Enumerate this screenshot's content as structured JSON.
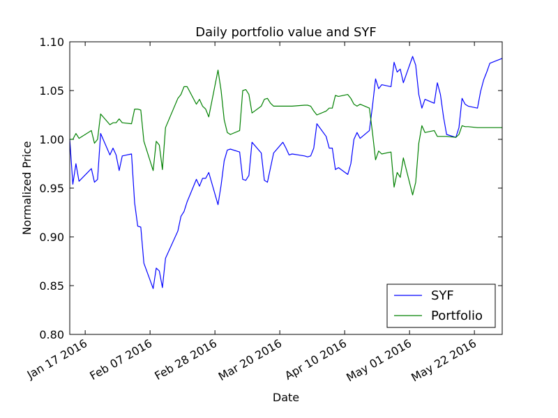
{
  "chart_data": {
    "type": "line",
    "title": "Daily portfolio value and SYF",
    "xlabel": "Date",
    "ylabel": "Normalized Price",
    "x": [
      "2016-01-12",
      "2016-01-13",
      "2016-01-14",
      "2016-01-15",
      "2016-01-19",
      "2016-01-20",
      "2016-01-21",
      "2016-01-22",
      "2016-01-25",
      "2016-01-26",
      "2016-01-27",
      "2016-01-28",
      "2016-01-29",
      "2016-02-01",
      "2016-02-02",
      "2016-02-03",
      "2016-02-04",
      "2016-02-05",
      "2016-02-08",
      "2016-02-09",
      "2016-02-10",
      "2016-02-11",
      "2016-02-12",
      "2016-02-16",
      "2016-02-17",
      "2016-02-18",
      "2016-02-19",
      "2016-02-22",
      "2016-02-23",
      "2016-02-24",
      "2016-02-25",
      "2016-02-26",
      "2016-02-29",
      "2016-03-01",
      "2016-03-02",
      "2016-03-03",
      "2016-03-04",
      "2016-03-07",
      "2016-03-08",
      "2016-03-09",
      "2016-03-10",
      "2016-03-11",
      "2016-03-14",
      "2016-03-15",
      "2016-03-16",
      "2016-03-17",
      "2016-03-18",
      "2016-03-21",
      "2016-03-22",
      "2016-03-23",
      "2016-03-24",
      "2016-03-28",
      "2016-03-29",
      "2016-03-30",
      "2016-03-31",
      "2016-04-01",
      "2016-04-04",
      "2016-04-05",
      "2016-04-06",
      "2016-04-07",
      "2016-04-08",
      "2016-04-11",
      "2016-04-12",
      "2016-04-13",
      "2016-04-14",
      "2016-04-15",
      "2016-04-18",
      "2016-04-19",
      "2016-04-20",
      "2016-04-21",
      "2016-04-22",
      "2016-04-25",
      "2016-04-26",
      "2016-04-27",
      "2016-04-28",
      "2016-04-29",
      "2016-05-02",
      "2016-05-03",
      "2016-05-04",
      "2016-05-05",
      "2016-05-06",
      "2016-05-09",
      "2016-05-10",
      "2016-05-11",
      "2016-05-12",
      "2016-05-13",
      "2016-05-16",
      "2016-05-17",
      "2016-05-18",
      "2016-05-19",
      "2016-05-20",
      "2016-05-23",
      "2016-05-24",
      "2016-05-25",
      "2016-05-26",
      "2016-05-27",
      "2016-05-31"
    ],
    "series": [
      {
        "name": "SYF",
        "color": "#0000ff",
        "values": [
          1.0,
          0.954,
          0.975,
          0.957,
          0.97,
          0.956,
          0.959,
          1.006,
          0.984,
          0.991,
          0.984,
          0.968,
          0.983,
          0.985,
          0.935,
          0.911,
          0.91,
          0.873,
          0.847,
          0.868,
          0.865,
          0.848,
          0.878,
          0.906,
          0.921,
          0.926,
          0.936,
          0.959,
          0.952,
          0.96,
          0.96,
          0.966,
          0.933,
          0.953,
          0.978,
          0.989,
          0.99,
          0.987,
          0.959,
          0.958,
          0.963,
          0.997,
          0.986,
          0.958,
          0.956,
          0.971,
          0.986,
          0.997,
          0.991,
          0.984,
          0.985,
          0.983,
          0.982,
          0.983,
          0.991,
          1.016,
          1.003,
          0.991,
          0.991,
          0.969,
          0.971,
          0.964,
          0.975,
          1.0,
          1.007,
          1.001,
          1.009,
          1.034,
          1.062,
          1.052,
          1.056,
          1.054,
          1.079,
          1.069,
          1.072,
          1.058,
          1.085,
          1.076,
          1.046,
          1.032,
          1.041,
          1.037,
          1.058,
          1.046,
          1.023,
          1.005,
          1.002,
          1.012,
          1.042,
          1.036,
          1.034,
          1.032,
          1.049,
          1.061,
          1.069,
          1.078,
          1.083
        ]
      },
      {
        "name": "Portfolio",
        "color": "#008000",
        "values": [
          1.0,
          1.0,
          1.006,
          1.001,
          1.009,
          0.996,
          1.0,
          1.026,
          1.015,
          1.017,
          1.017,
          1.021,
          1.017,
          1.016,
          1.031,
          1.031,
          1.03,
          0.998,
          0.968,
          0.998,
          0.994,
          0.969,
          1.012,
          1.042,
          1.046,
          1.054,
          1.054,
          1.036,
          1.041,
          1.034,
          1.031,
          1.023,
          1.071,
          1.05,
          1.02,
          1.007,
          1.005,
          1.009,
          1.05,
          1.051,
          1.046,
          1.027,
          1.034,
          1.041,
          1.042,
          1.037,
          1.034,
          1.034,
          1.034,
          1.034,
          1.034,
          1.035,
          1.035,
          1.034,
          1.029,
          1.025,
          1.029,
          1.032,
          1.032,
          1.045,
          1.044,
          1.046,
          1.042,
          1.036,
          1.034,
          1.036,
          1.032,
          1.007,
          0.979,
          0.988,
          0.985,
          0.987,
          0.951,
          0.966,
          0.961,
          0.981,
          0.943,
          0.956,
          0.996,
          1.014,
          1.007,
          1.009,
          1.003,
          1.003,
          1.003,
          1.003,
          1.002,
          1.005,
          1.014,
          1.013,
          1.013,
          1.012,
          1.012,
          1.012,
          1.012,
          1.012,
          1.012
        ]
      }
    ],
    "xlim": [
      "2016-01-12",
      "2016-05-31"
    ],
    "xticks": [
      {
        "value": "2016-01-17",
        "label": "Jan 17 2016"
      },
      {
        "value": "2016-02-07",
        "label": "Feb 07 2016"
      },
      {
        "value": "2016-02-28",
        "label": "Feb 28 2016"
      },
      {
        "value": "2016-03-20",
        "label": "Mar 20 2016"
      },
      {
        "value": "2016-04-10",
        "label": "Apr 10 2016"
      },
      {
        "value": "2016-05-01",
        "label": "May 01 2016"
      },
      {
        "value": "2016-05-22",
        "label": "May 22 2016"
      }
    ],
    "ylim": [
      0.8,
      1.1
    ],
    "yticks": [
      {
        "value": 0.8,
        "label": "0.80"
      },
      0.85,
      {
        "value": 0.9,
        "label": "0.90"
      },
      0.95,
      {
        "value": 1.0,
        "label": "1.00"
      },
      1.05,
      {
        "value": 1.1,
        "label": "1.10"
      }
    ],
    "legend": "lower right"
  }
}
